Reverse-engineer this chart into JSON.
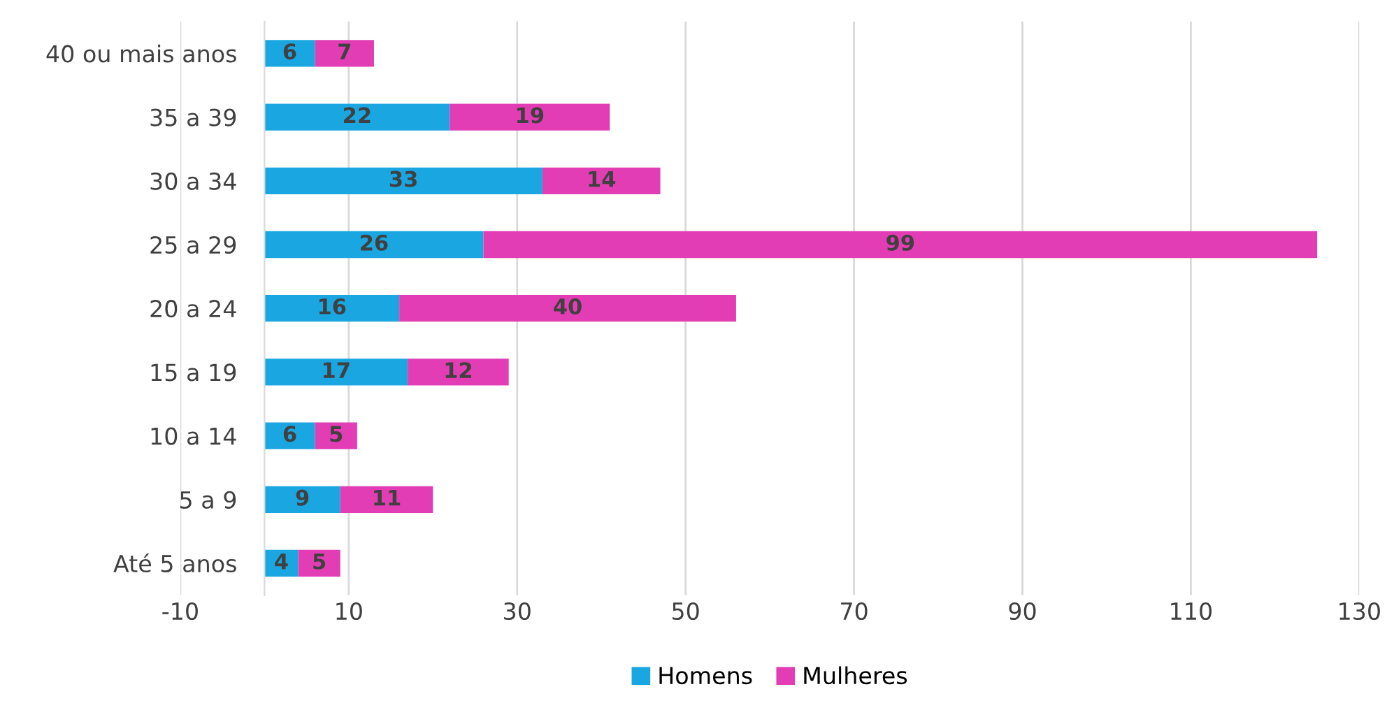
{
  "chart_data": {
    "type": "bar",
    "orientation": "horizontal",
    "stacked": true,
    "categories": [
      "40 ou mais anos",
      "35 a 39",
      "30 a 34",
      "25 a 29",
      "20 a 24",
      "15 a 19",
      "10 a 14",
      "5 a 9",
      "Até 5 anos"
    ],
    "series": [
      {
        "name": "Homens",
        "color": "#1aa6e0",
        "values": [
          6,
          22,
          33,
          26,
          16,
          17,
          6,
          9,
          4
        ]
      },
      {
        "name": "Mulheres",
        "color": "#e23db5",
        "values": [
          7,
          19,
          14,
          99,
          40,
          12,
          5,
          11,
          5
        ]
      }
    ],
    "xlim": [
      -10,
      130
    ],
    "xticks": [
      -10,
      10,
      30,
      50,
      70,
      90,
      110,
      130
    ],
    "grid": "x",
    "legend": "bottom",
    "data_labels": true
  }
}
